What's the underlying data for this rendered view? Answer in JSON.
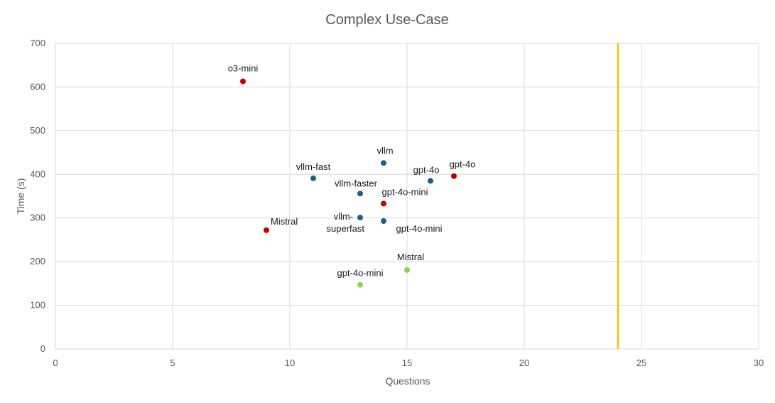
{
  "chart_data": {
    "type": "scatter",
    "title": "Complex Use-Case",
    "xlabel": "Questions",
    "ylabel": "Time (s)",
    "xlim": [
      0,
      30
    ],
    "ylim": [
      0,
      700
    ],
    "xticks": [
      "0",
      "5",
      "10",
      "15",
      "20",
      "25",
      "30"
    ],
    "yticks": [
      "0",
      "100",
      "200",
      "300",
      "400",
      "500",
      "600",
      "700"
    ],
    "grid": true,
    "vertical_line": {
      "x": 24,
      "color": "#ffc000"
    },
    "series": [
      {
        "color": "#c00000",
        "points": [
          {
            "x": 8,
            "y": 613,
            "label": "o3-mini"
          },
          {
            "x": 9,
            "y": 272,
            "label": "Mistral"
          },
          {
            "x": 14,
            "y": 333,
            "label": "gpt-4o-mini"
          },
          {
            "x": 17,
            "y": 396,
            "label": "gpt-4o"
          }
        ]
      },
      {
        "color": "#1f5f84",
        "points": [
          {
            "x": 11,
            "y": 391,
            "label": "vllm-fast"
          },
          {
            "x": 13,
            "y": 356,
            "label": "vllm-faster"
          },
          {
            "x": 13,
            "y": 301,
            "label": "vllm-superfast"
          },
          {
            "x": 14,
            "y": 426,
            "label": "vllm"
          },
          {
            "x": 14,
            "y": 293,
            "label": "gpt-4o-mini"
          },
          {
            "x": 16,
            "y": 385,
            "label": "gpt-4o"
          }
        ]
      },
      {
        "color": "#92d050",
        "points": [
          {
            "x": 13,
            "y": 147,
            "label": "gpt-4o-mini"
          },
          {
            "x": 15,
            "y": 181,
            "label": "Mistral"
          }
        ]
      }
    ]
  }
}
